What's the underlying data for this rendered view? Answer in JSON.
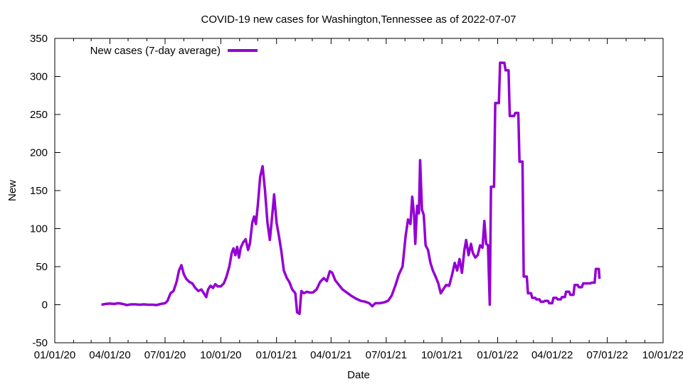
{
  "chart_data": {
    "type": "line",
    "title": "COVID-19 new cases for Washington,Tennessee as of 2022-07-07",
    "xlabel": "Date",
    "ylabel": "New",
    "xlim": [
      "2020-01-01",
      "2022-10-01"
    ],
    "ylim": [
      -50,
      350
    ],
    "yticks": [
      -50,
      0,
      50,
      100,
      150,
      200,
      250,
      300,
      350
    ],
    "yticklabels": [
      "-50",
      "0",
      "50",
      "100",
      "150",
      "200",
      "250",
      "300",
      "350"
    ],
    "xticks": [
      "2020-01-01",
      "2020-04-01",
      "2020-07-01",
      "2020-10-01",
      "2021-01-01",
      "2021-04-01",
      "2021-07-01",
      "2021-10-01",
      "2022-01-01",
      "2022-04-01",
      "2022-07-01",
      "2022-10-01"
    ],
    "xticklabels": [
      "01/01/20",
      "04/01/20",
      "07/01/20",
      "10/01/20",
      "01/01/21",
      "04/01/21",
      "07/01/21",
      "10/01/21",
      "01/01/22",
      "04/01/22",
      "07/01/22",
      "10/01/22"
    ],
    "grid": false,
    "legend": {
      "position": "top-left",
      "entries": [
        "New cases (7-day average)"
      ]
    },
    "series": [
      {
        "name": "New cases (7-day average)",
        "color": "#9400d3",
        "points": [
          [
            "2020-03-18",
            0
          ],
          [
            "2020-03-25",
            1
          ],
          [
            "2020-04-01",
            1.5
          ],
          [
            "2020-04-08",
            1
          ],
          [
            "2020-04-15",
            2
          ],
          [
            "2020-04-22",
            1
          ],
          [
            "2020-04-29",
            -0.5
          ],
          [
            "2020-05-06",
            0.5
          ],
          [
            "2020-05-13",
            0.5
          ],
          [
            "2020-05-20",
            0
          ],
          [
            "2020-05-27",
            0.5
          ],
          [
            "2020-06-03",
            0
          ],
          [
            "2020-06-10",
            0
          ],
          [
            "2020-06-17",
            -0.5
          ],
          [
            "2020-06-24",
            1
          ],
          [
            "2020-07-01",
            2
          ],
          [
            "2020-07-05",
            5
          ],
          [
            "2020-07-10",
            15
          ],
          [
            "2020-07-15",
            18
          ],
          [
            "2020-07-20",
            30
          ],
          [
            "2020-07-24",
            45
          ],
          [
            "2020-07-28",
            52
          ],
          [
            "2020-08-01",
            40
          ],
          [
            "2020-08-05",
            34
          ],
          [
            "2020-08-10",
            30
          ],
          [
            "2020-08-15",
            28
          ],
          [
            "2020-08-20",
            22
          ],
          [
            "2020-08-25",
            18
          ],
          [
            "2020-08-30",
            20
          ],
          [
            "2020-09-03",
            15
          ],
          [
            "2020-09-07",
            10
          ],
          [
            "2020-09-10",
            20
          ],
          [
            "2020-09-14",
            25
          ],
          [
            "2020-09-18",
            22
          ],
          [
            "2020-09-22",
            27
          ],
          [
            "2020-09-26",
            24
          ],
          [
            "2020-10-01",
            24
          ],
          [
            "2020-10-06",
            28
          ],
          [
            "2020-10-10",
            36
          ],
          [
            "2020-10-15",
            50
          ],
          [
            "2020-10-19",
            68
          ],
          [
            "2020-10-22",
            74
          ],
          [
            "2020-10-25",
            65
          ],
          [
            "2020-10-28",
            76
          ],
          [
            "2020-10-31",
            62
          ],
          [
            "2020-11-03",
            75
          ],
          [
            "2020-11-07",
            82
          ],
          [
            "2020-11-11",
            86
          ],
          [
            "2020-11-15",
            72
          ],
          [
            "2020-11-18",
            80
          ],
          [
            "2020-11-22",
            108
          ],
          [
            "2020-11-25",
            116
          ],
          [
            "2020-11-28",
            106
          ],
          [
            "2020-12-01",
            130
          ],
          [
            "2020-12-05",
            168
          ],
          [
            "2020-12-09",
            182
          ],
          [
            "2020-12-13",
            150
          ],
          [
            "2020-12-17",
            108
          ],
          [
            "2020-12-21",
            85
          ],
          [
            "2020-12-25",
            118
          ],
          [
            "2020-12-28",
            145
          ],
          [
            "2021-01-01",
            108
          ],
          [
            "2021-01-05",
            90
          ],
          [
            "2021-01-09",
            70
          ],
          [
            "2021-01-13",
            45
          ],
          [
            "2021-01-18",
            35
          ],
          [
            "2021-01-22",
            30
          ],
          [
            "2021-01-27",
            20
          ],
          [
            "2021-02-01",
            15
          ],
          [
            "2021-02-04",
            -10
          ],
          [
            "2021-02-08",
            -12
          ],
          [
            "2021-02-11",
            18
          ],
          [
            "2021-02-15",
            15
          ],
          [
            "2021-02-20",
            17
          ],
          [
            "2021-02-25",
            16
          ],
          [
            "2021-03-02",
            16
          ],
          [
            "2021-03-08",
            20
          ],
          [
            "2021-03-14",
            30
          ],
          [
            "2021-03-20",
            35
          ],
          [
            "2021-03-25",
            31
          ],
          [
            "2021-03-30",
            44
          ],
          [
            "2021-04-03",
            42
          ],
          [
            "2021-04-08",
            32
          ],
          [
            "2021-04-14",
            26
          ],
          [
            "2021-04-20",
            20
          ],
          [
            "2021-04-27",
            16
          ],
          [
            "2021-05-04",
            12
          ],
          [
            "2021-05-12",
            8
          ],
          [
            "2021-05-20",
            5
          ],
          [
            "2021-05-27",
            4
          ],
          [
            "2021-06-03",
            2
          ],
          [
            "2021-06-08",
            -2
          ],
          [
            "2021-06-13",
            2
          ],
          [
            "2021-06-20",
            2
          ],
          [
            "2021-06-27",
            3
          ],
          [
            "2021-07-04",
            5
          ],
          [
            "2021-07-10",
            12
          ],
          [
            "2021-07-16",
            25
          ],
          [
            "2021-07-22",
            40
          ],
          [
            "2021-07-28",
            50
          ],
          [
            "2021-08-02",
            90
          ],
          [
            "2021-08-06",
            112
          ],
          [
            "2021-08-10",
            106
          ],
          [
            "2021-08-13",
            142
          ],
          [
            "2021-08-16",
            118
          ],
          [
            "2021-08-18",
            80
          ],
          [
            "2021-08-21",
            130
          ],
          [
            "2021-08-24",
            120
          ],
          [
            "2021-08-26",
            190
          ],
          [
            "2021-08-29",
            125
          ],
          [
            "2021-09-01",
            118
          ],
          [
            "2021-09-04",
            78
          ],
          [
            "2021-09-08",
            72
          ],
          [
            "2021-09-12",
            55
          ],
          [
            "2021-09-16",
            45
          ],
          [
            "2021-09-20",
            38
          ],
          [
            "2021-09-25",
            28
          ],
          [
            "2021-09-29",
            15
          ],
          [
            "2021-10-03",
            20
          ],
          [
            "2021-10-08",
            26
          ],
          [
            "2021-10-13",
            25
          ],
          [
            "2021-10-18",
            40
          ],
          [
            "2021-10-22",
            55
          ],
          [
            "2021-10-26",
            45
          ],
          [
            "2021-10-30",
            60
          ],
          [
            "2021-11-03",
            42
          ],
          [
            "2021-11-07",
            72
          ],
          [
            "2021-11-10",
            85
          ],
          [
            "2021-11-14",
            65
          ],
          [
            "2021-11-18",
            80
          ],
          [
            "2021-11-21",
            68
          ],
          [
            "2021-11-25",
            62
          ],
          [
            "2021-11-29",
            65
          ],
          [
            "2021-12-03",
            78
          ],
          [
            "2021-12-07",
            75
          ],
          [
            "2021-12-10",
            110
          ],
          [
            "2021-12-13",
            80
          ],
          [
            "2021-12-16",
            78
          ],
          [
            "2021-12-19",
            0
          ],
          [
            "2021-12-21",
            155
          ],
          [
            "2021-12-26",
            155
          ],
          [
            "2021-12-28",
            265
          ],
          [
            "2022-01-03",
            265
          ],
          [
            "2022-01-05",
            318
          ],
          [
            "2022-01-12",
            318
          ],
          [
            "2022-01-14",
            308
          ],
          [
            "2022-01-19",
            308
          ],
          [
            "2022-01-21",
            248
          ],
          [
            "2022-01-28",
            248
          ],
          [
            "2022-01-30",
            252
          ],
          [
            "2022-02-04",
            252
          ],
          [
            "2022-02-06",
            188
          ],
          [
            "2022-02-11",
            188
          ],
          [
            "2022-02-13",
            37
          ],
          [
            "2022-02-18",
            37
          ],
          [
            "2022-02-20",
            15
          ],
          [
            "2022-02-25",
            15
          ],
          [
            "2022-02-27",
            9
          ],
          [
            "2022-03-04",
            9
          ],
          [
            "2022-03-06",
            7
          ],
          [
            "2022-03-11",
            7
          ],
          [
            "2022-03-13",
            4
          ],
          [
            "2022-03-18",
            4
          ],
          [
            "2022-03-20",
            5
          ],
          [
            "2022-03-25",
            5
          ],
          [
            "2022-03-27",
            2
          ],
          [
            "2022-04-01",
            2
          ],
          [
            "2022-04-03",
            9
          ],
          [
            "2022-04-08",
            9
          ],
          [
            "2022-04-10",
            7
          ],
          [
            "2022-04-15",
            7
          ],
          [
            "2022-04-17",
            10
          ],
          [
            "2022-04-22",
            10
          ],
          [
            "2022-04-24",
            17
          ],
          [
            "2022-04-29",
            17
          ],
          [
            "2022-05-01",
            13
          ],
          [
            "2022-05-06",
            13
          ],
          [
            "2022-05-08",
            26
          ],
          [
            "2022-05-13",
            26
          ],
          [
            "2022-05-15",
            23
          ],
          [
            "2022-05-20",
            23
          ],
          [
            "2022-05-22",
            28
          ],
          [
            "2022-05-27",
            28
          ],
          [
            "2022-05-29",
            28
          ],
          [
            "2022-06-03",
            28
          ],
          [
            "2022-06-05",
            29
          ],
          [
            "2022-06-10",
            29
          ],
          [
            "2022-06-12",
            47
          ],
          [
            "2022-06-17",
            47
          ],
          [
            "2022-06-18",
            34
          ]
        ]
      }
    ]
  }
}
